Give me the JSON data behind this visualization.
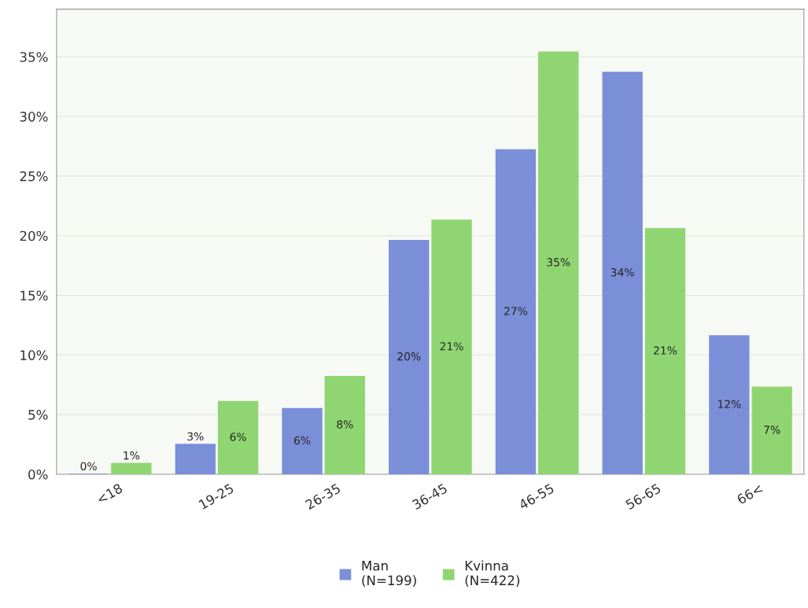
{
  "chart_data": {
    "type": "bar",
    "categories": [
      "<18",
      "19-25",
      "26-35",
      "36-45",
      "46-55",
      "56-65",
      "66<"
    ],
    "series": [
      {
        "name": "Man\n(N=199)",
        "color": "#7b8fd9",
        "values": [
          0,
          2.5,
          5.5,
          19.6,
          27.2,
          33.7,
          11.6
        ],
        "value_labels": [
          "0%",
          "3%",
          "6%",
          "20%",
          "27%",
          "34%",
          "12%"
        ]
      },
      {
        "name": "Kvinna\n(N=422)",
        "color": "#8fd672",
        "values": [
          0.9,
          6.1,
          8.2,
          21.3,
          35.4,
          20.6,
          7.3
        ],
        "value_labels": [
          "1%",
          "6%",
          "8%",
          "21%",
          "35%",
          "21%",
          "7%"
        ]
      }
    ],
    "ylim": [
      0,
      39
    ],
    "yticks": [
      {
        "value": 0,
        "label": "0%"
      },
      {
        "value": 5,
        "label": "5%"
      },
      {
        "value": 10,
        "label": "10%"
      },
      {
        "value": 15,
        "label": "15%"
      },
      {
        "value": 20,
        "label": "20%"
      },
      {
        "value": 25,
        "label": "25%"
      },
      {
        "value": 30,
        "label": "30%"
      },
      {
        "value": 35,
        "label": "35%"
      }
    ],
    "grid": "y",
    "legend": "bottom"
  }
}
